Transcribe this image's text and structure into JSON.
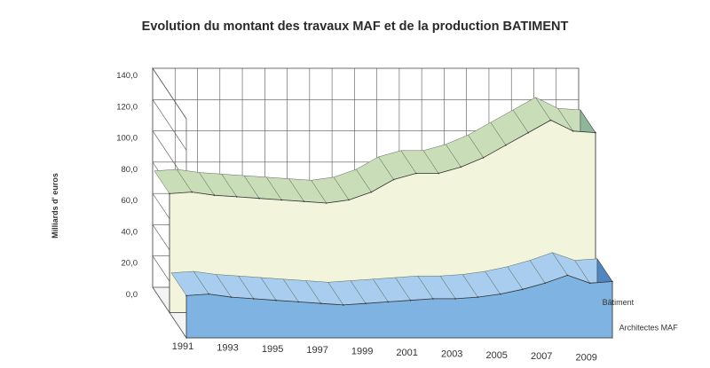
{
  "chart_data": {
    "type": "area",
    "title": "Evolution du montant des travaux MAF et de la production BATIMENT",
    "ylabel": "Milliards d' euros",
    "xlabel": "",
    "ylim": [
      0,
      140
    ],
    "y_ticks": [
      "0,0",
      "20,0",
      "40,0",
      "60,0",
      "80,0",
      "100,0",
      "120,0",
      "140,0"
    ],
    "x": [
      1991,
      1992,
      1993,
      1994,
      1995,
      1996,
      1997,
      1998,
      1999,
      2000,
      2001,
      2002,
      2003,
      2004,
      2005,
      2006,
      2007,
      2008,
      2009,
      2010
    ],
    "x_tick_labels": [
      "1991",
      "1993",
      "1995",
      "1997",
      "1999",
      "2001",
      "2003",
      "2005",
      "2007",
      "2009"
    ],
    "series": [
      {
        "name": "Bâtiment",
        "color": "#f3f4dc",
        "top_color": "#c8ddb8",
        "side_color": "#8fb69a",
        "values": [
          76,
          77,
          75,
          74,
          73,
          72,
          71,
          70,
          72,
          77,
          85,
          89,
          89,
          93,
          99,
          107,
          115,
          123,
          116,
          115
        ]
      },
      {
        "name": "Architectes MAF",
        "color": "#7fb3e2",
        "top_color": "#a9cdee",
        "side_color": "#4f86c0",
        "values": [
          27,
          28,
          26,
          25,
          24,
          23,
          22,
          21,
          22,
          23,
          24,
          25,
          25,
          26,
          28,
          31,
          35,
          40,
          35,
          36
        ]
      }
    ],
    "grid": true,
    "legend_position": "bottom-right, at end of depth axis"
  }
}
